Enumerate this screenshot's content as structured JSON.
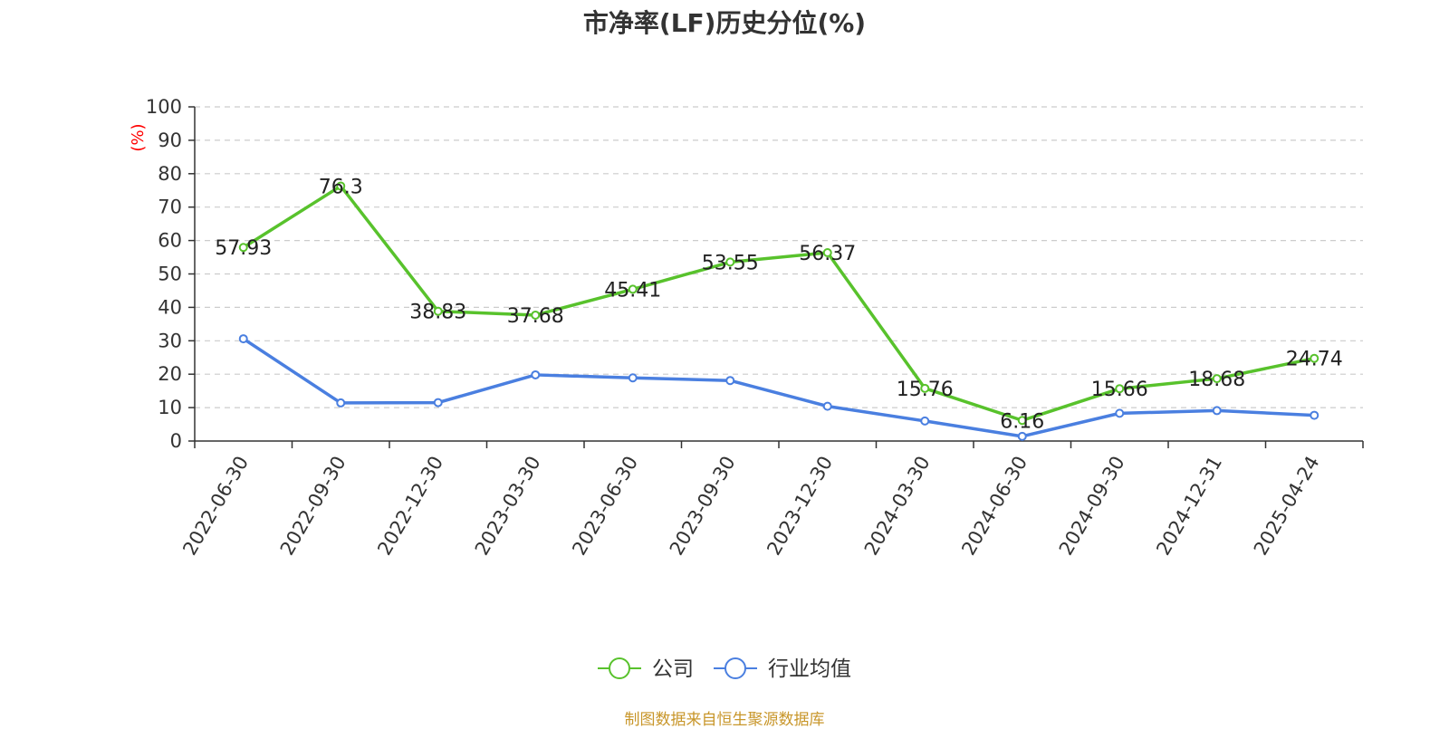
{
  "title": "市净率(LF)历史分位(%)",
  "footer": "制图数据来自恒生聚源数据库",
  "colors": {
    "company": "#58c22c",
    "industry": "#4a7fe0",
    "unit_label": "#ff0000",
    "footer": "#c8962a"
  },
  "chart_data": {
    "type": "line",
    "title": "市净率(LF)历史分位(%)",
    "ylabel": "(%)",
    "xlabel": "",
    "ylim": [
      0,
      100
    ],
    "yticks": [
      0,
      10,
      20,
      30,
      40,
      50,
      60,
      70,
      80,
      90,
      100
    ],
    "grid": true,
    "legend_position": "bottom-center",
    "categories": [
      "2022-06-30",
      "2022-09-30",
      "2022-12-30",
      "2023-03-30",
      "2023-06-30",
      "2023-09-30",
      "2023-12-30",
      "2024-03-30",
      "2024-06-30",
      "2024-09-30",
      "2024-12-31",
      "2025-04-24"
    ],
    "series": [
      {
        "name": "公司",
        "color": "#58c22c",
        "values": [
          57.93,
          76.3,
          38.83,
          37.68,
          45.41,
          53.55,
          56.37,
          15.76,
          6.16,
          15.66,
          18.68,
          24.74
        ],
        "labels": [
          "57.93",
          "76.3",
          "38.83",
          "37.68",
          "45.41",
          "53.55",
          "56.37",
          "15.76",
          "6.16",
          "15.66",
          "18.68",
          "24.74"
        ]
      },
      {
        "name": "行业均值",
        "color": "#4a7fe0",
        "values": [
          30.6,
          11.4,
          11.5,
          19.8,
          18.9,
          18.1,
          10.4,
          6.0,
          1.4,
          8.3,
          9.1,
          7.7
        ]
      }
    ]
  }
}
